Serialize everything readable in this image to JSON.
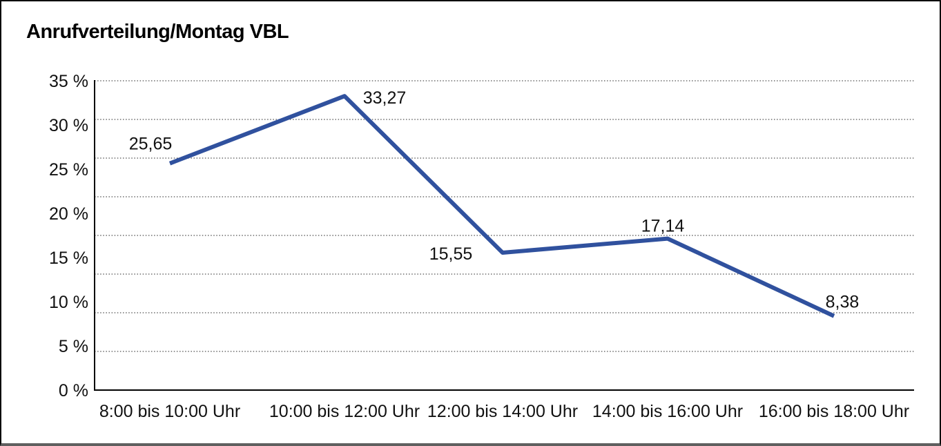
{
  "page": {
    "background": "#ffffff",
    "frame_border_color": "#0a0a0a",
    "frame_bottom_border_color": "#5f5f5f"
  },
  "chart_data": {
    "type": "line",
    "title": "Anrufverteilung/Montag VBL",
    "categories": [
      "8:00 bis 10:00 Uhr",
      "10:00 bis 12:00 Uhr",
      "12:00 bis 14:00 Uhr",
      "14:00 bis 16:00 Uhr",
      "16:00 bis 18:00 Uhr"
    ],
    "values": [
      25.65,
      33.27,
      15.55,
      17.14,
      8.38
    ],
    "value_labels": [
      "25,65",
      "33,27",
      "15,55",
      "17,14",
      "8,38"
    ],
    "xlabel": "",
    "ylabel": "",
    "y_tick_values": [
      0,
      5,
      10,
      15,
      20,
      25,
      30,
      35
    ],
    "y_tick_labels": [
      "0 %",
      "5 %",
      "10 %",
      "15 %",
      "20 %",
      "25 %",
      "30 %",
      "35 %"
    ],
    "ylim": [
      0,
      35
    ],
    "grid": "horizontal dotted, 8 equal divisions",
    "legend_position": "none",
    "decimal_separator": ",",
    "colors": {
      "line": "#30519E",
      "grid": "#4d4d4d",
      "axis": "#000000",
      "text": "#111111"
    }
  }
}
